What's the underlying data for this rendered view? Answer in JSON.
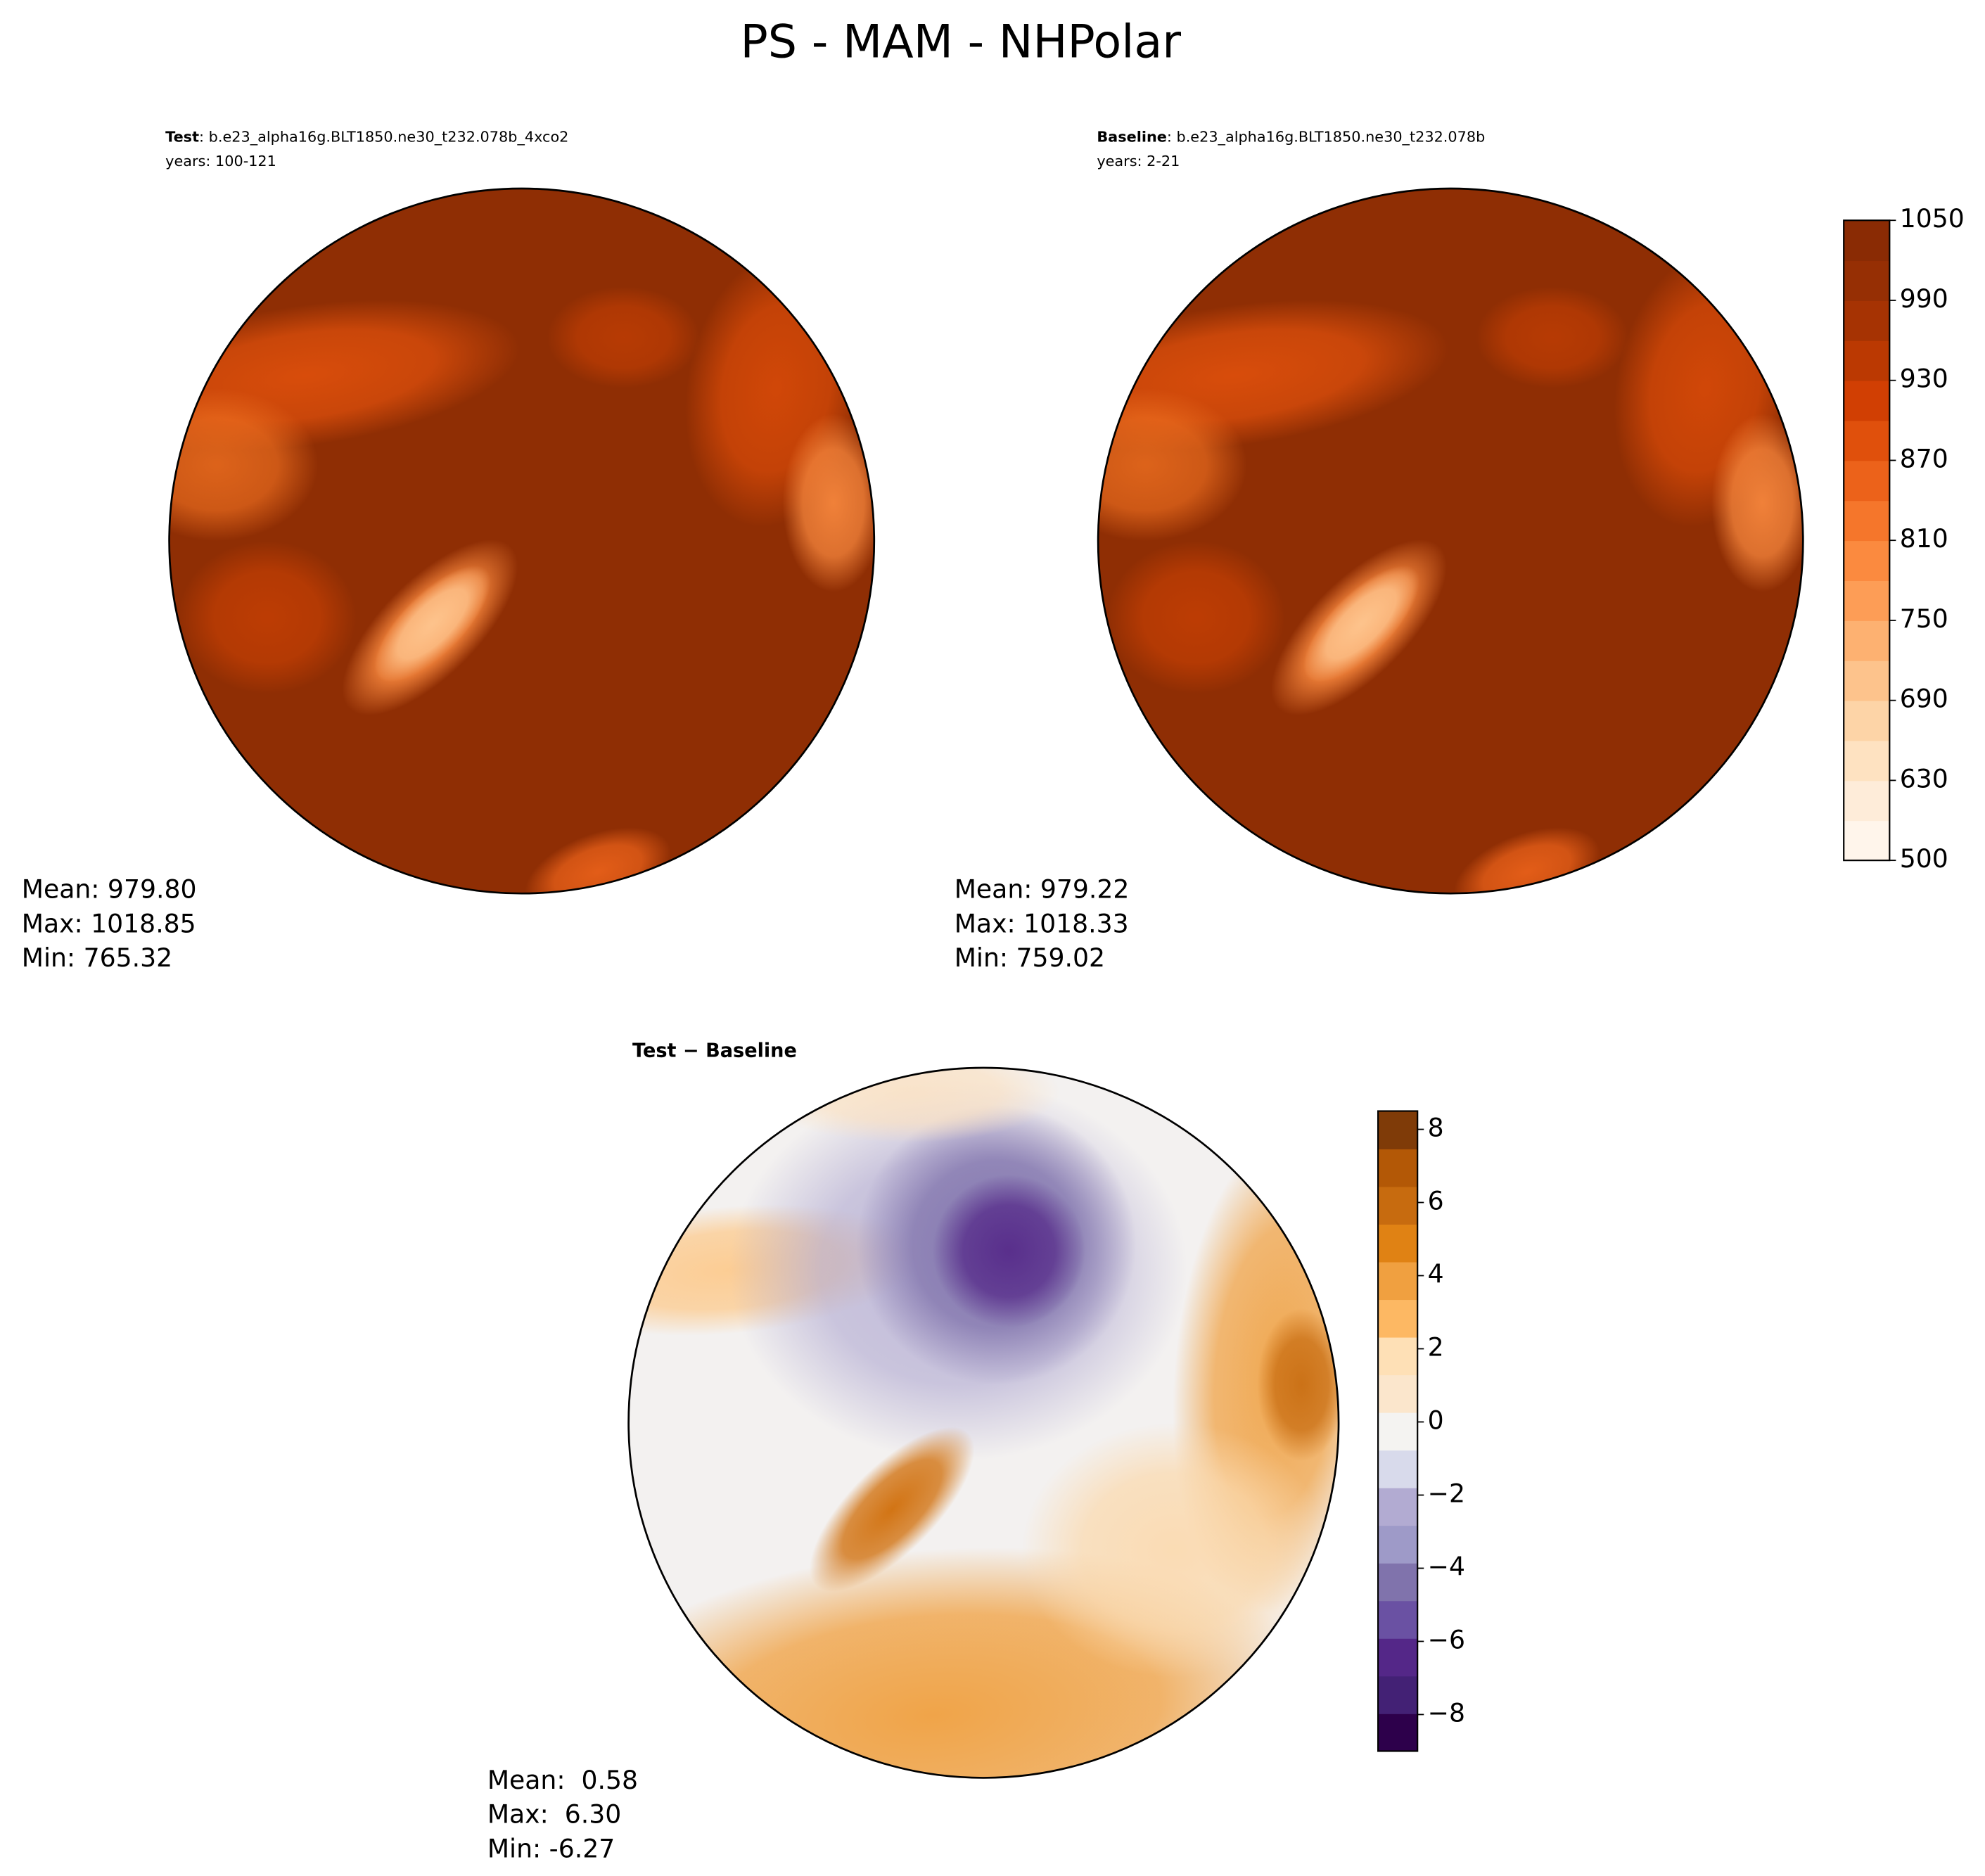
{
  "title": "PS - MAM - NHPolar",
  "chart_data": [
    {
      "type": "polar-map",
      "palette": "oranges",
      "label": "Test",
      "case": ": b.e23_alpha16g.BLT1850.ne30_t232.078b_4xco2",
      "years": "years: 100-121",
      "stats": [
        "Mean: 979.80",
        "Max: 1018.85",
        "Min: 765.32"
      ]
    },
    {
      "type": "polar-map",
      "palette": "oranges",
      "label": "Baseline",
      "case": ": b.e23_alpha16g.BLT1850.ne30_t232.078b",
      "years": "years: 2-21",
      "stats": [
        "Mean: 979.22",
        "Max: 1018.33",
        "Min: 759.02"
      ],
      "colorbar": {
        "yticks": [
          500,
          630,
          690,
          750,
          810,
          870,
          930,
          990,
          1050
        ],
        "tick_spacing": "uniform",
        "colors": [
          "#fff5eb",
          "#feecd9",
          "#fee2c1",
          "#fdd4a7",
          "#fdc38c",
          "#fdb171",
          "#fd9d56",
          "#fb8a3f",
          "#f5762b",
          "#ec621a",
          "#e0500c",
          "#d13f03",
          "#bb3902",
          "#a63303",
          "#962f04",
          "#8a2b04"
        ]
      }
    },
    {
      "type": "polar-map",
      "palette": "diff",
      "label": "Test − Baseline",
      "stats": [
        "Mean:  0.58",
        "Max:  6.30",
        "Min: -6.27"
      ],
      "colorbar": {
        "ylim": [
          -9,
          8.5
        ],
        "yticks": [
          {
            "value": -8,
            "label": "−8"
          },
          {
            "value": -6,
            "label": "−6"
          },
          {
            "value": -4,
            "label": "−4"
          },
          {
            "value": -2,
            "label": "−2"
          },
          0,
          2,
          4,
          6,
          8
        ],
        "colors": [
          "#2d004b",
          "#432175",
          "#542788",
          "#6a51a3",
          "#8073ac",
          "#9e9ac8",
          "#b2abd2",
          "#d8daeb",
          "#f4f3f1",
          "#fbe6cc",
          "#fee0b6",
          "#fdb863",
          "#f0a040",
          "#e08214",
          "#c76b0f",
          "#b35806",
          "#7f3b08"
        ]
      }
    }
  ]
}
